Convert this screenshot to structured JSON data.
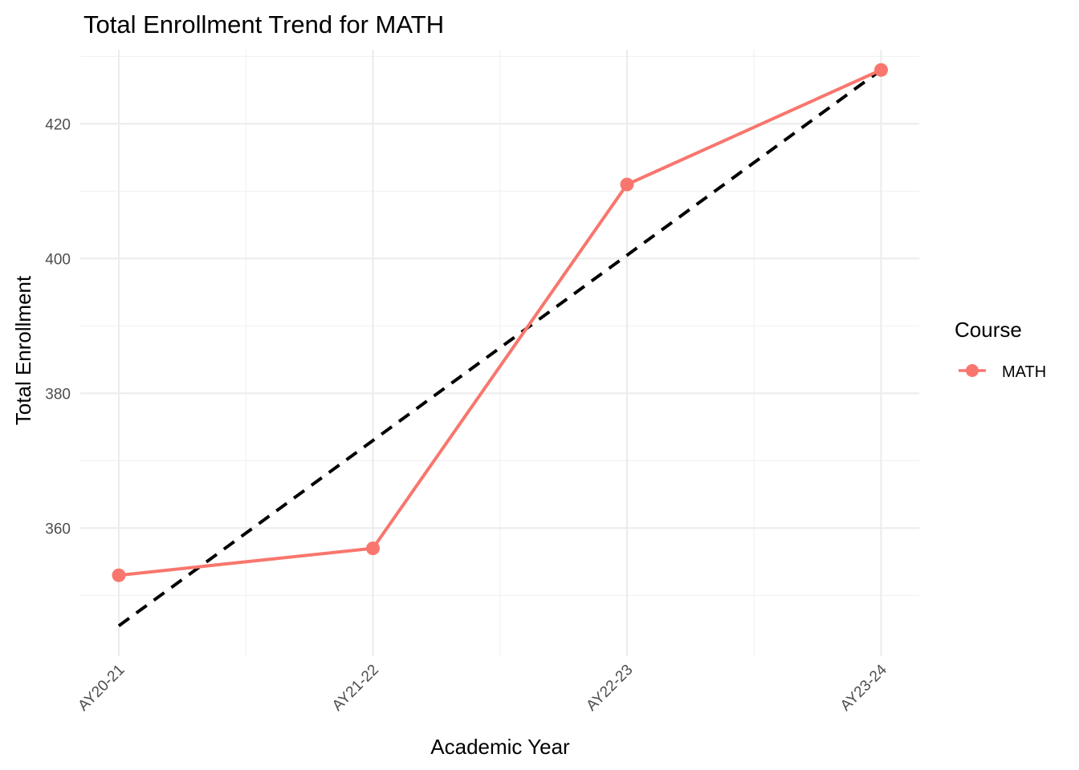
{
  "chart_data": {
    "type": "line",
    "title": "Total Enrollment Trend for MATH",
    "xlabel": "Academic Year",
    "ylabel": "Total Enrollment",
    "categories": [
      "AY20-21",
      "AY21-22",
      "AY22-23",
      "AY23-24"
    ],
    "series": [
      {
        "name": "MATH",
        "values": [
          353,
          357,
          411,
          428
        ],
        "color": "#f8766d"
      }
    ],
    "trend_line": {
      "values": [
        345.5,
        373,
        400.5,
        428
      ],
      "color": "#000000",
      "style": "dashed"
    },
    "y_ticks": [
      360,
      380,
      400,
      420
    ],
    "ylim": [
      341,
      431
    ],
    "grid": true,
    "legend": {
      "title": "Course",
      "position": "right"
    }
  }
}
